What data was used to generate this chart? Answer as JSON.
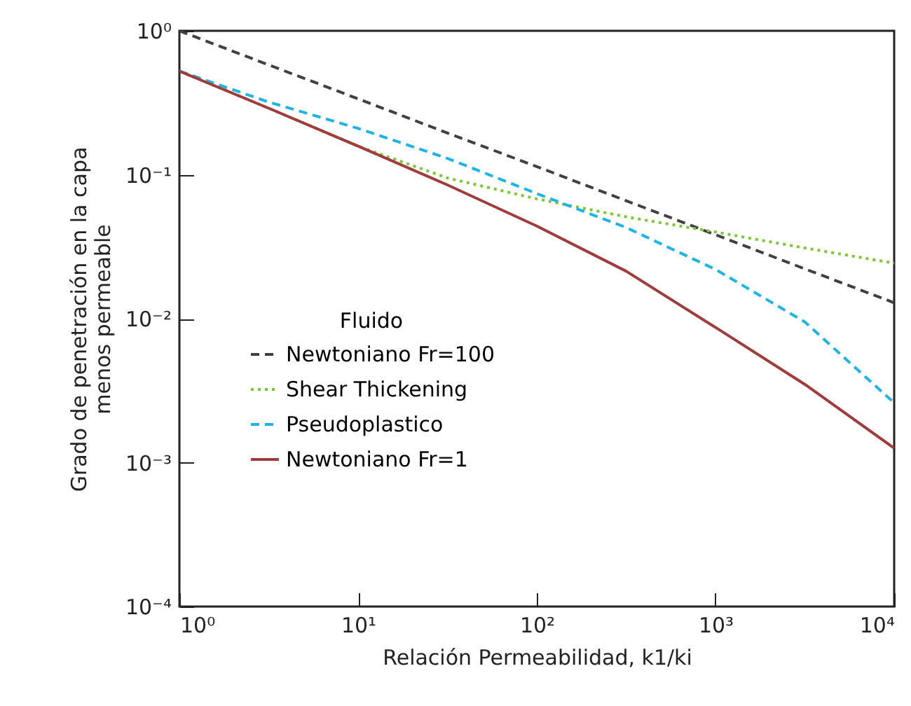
{
  "chart_data": {
    "type": "line",
    "xlabel": "Relación Permeabilidad, k1/ki",
    "ylabel": "Grado de penetración en la capa\nmenos permeable",
    "legend_title": "Fluido",
    "log": "xy",
    "grid": false,
    "legend": "bottom left",
    "marker": "none",
    "x": [
      1,
      3.16,
      10,
      31.6,
      100,
      316,
      1000,
      3160,
      10000
    ],
    "xlim": [
      1,
      10000
    ],
    "ylim": [
      0.0001,
      1
    ],
    "xticks": [
      {
        "value": 1,
        "label": "10⁰"
      },
      {
        "value": 10,
        "label": "10¹"
      },
      {
        "value": 100,
        "label": "10²"
      },
      {
        "value": 1000,
        "label": "10³"
      },
      {
        "value": 10000,
        "label": "10⁴"
      }
    ],
    "yticks": [
      {
        "value": 0.0001,
        "label": "10⁻⁴"
      },
      {
        "value": 0.001,
        "label": "10⁻³"
      },
      {
        "value": 0.01,
        "label": "10⁻²"
      },
      {
        "value": 0.1,
        "label": "10⁻¹"
      },
      {
        "value": 1,
        "label": "10⁰"
      }
    ],
    "series": [
      {
        "name": "Newtoniano Fr=100",
        "color": "#404040",
        "line_style": "dashed",
        "values": [
          1.0,
          0.58,
          0.337,
          0.195,
          0.114,
          0.066,
          0.0383,
          0.0222,
          0.0129
        ]
      },
      {
        "name": "Shear Thickening",
        "color": "#7cc832",
        "line_style": "dotted",
        "values": [
          0.525,
          0.29,
          0.158,
          0.095,
          0.068,
          0.051,
          0.04,
          0.031,
          0.0243
        ]
      },
      {
        "name": "Pseudoplastico",
        "color": "#1eb4e6",
        "line_style": "dashed",
        "values": [
          0.525,
          0.32,
          0.21,
          0.13,
          0.074,
          0.043,
          0.022,
          0.0095,
          0.0026
        ]
      },
      {
        "name": "Newtoniano Fr=1",
        "color": "#a03c3c",
        "line_style": "solid",
        "values": [
          0.525,
          0.29,
          0.158,
          0.085,
          0.044,
          0.0214,
          0.0087,
          0.0035,
          0.00126
        ]
      }
    ]
  }
}
